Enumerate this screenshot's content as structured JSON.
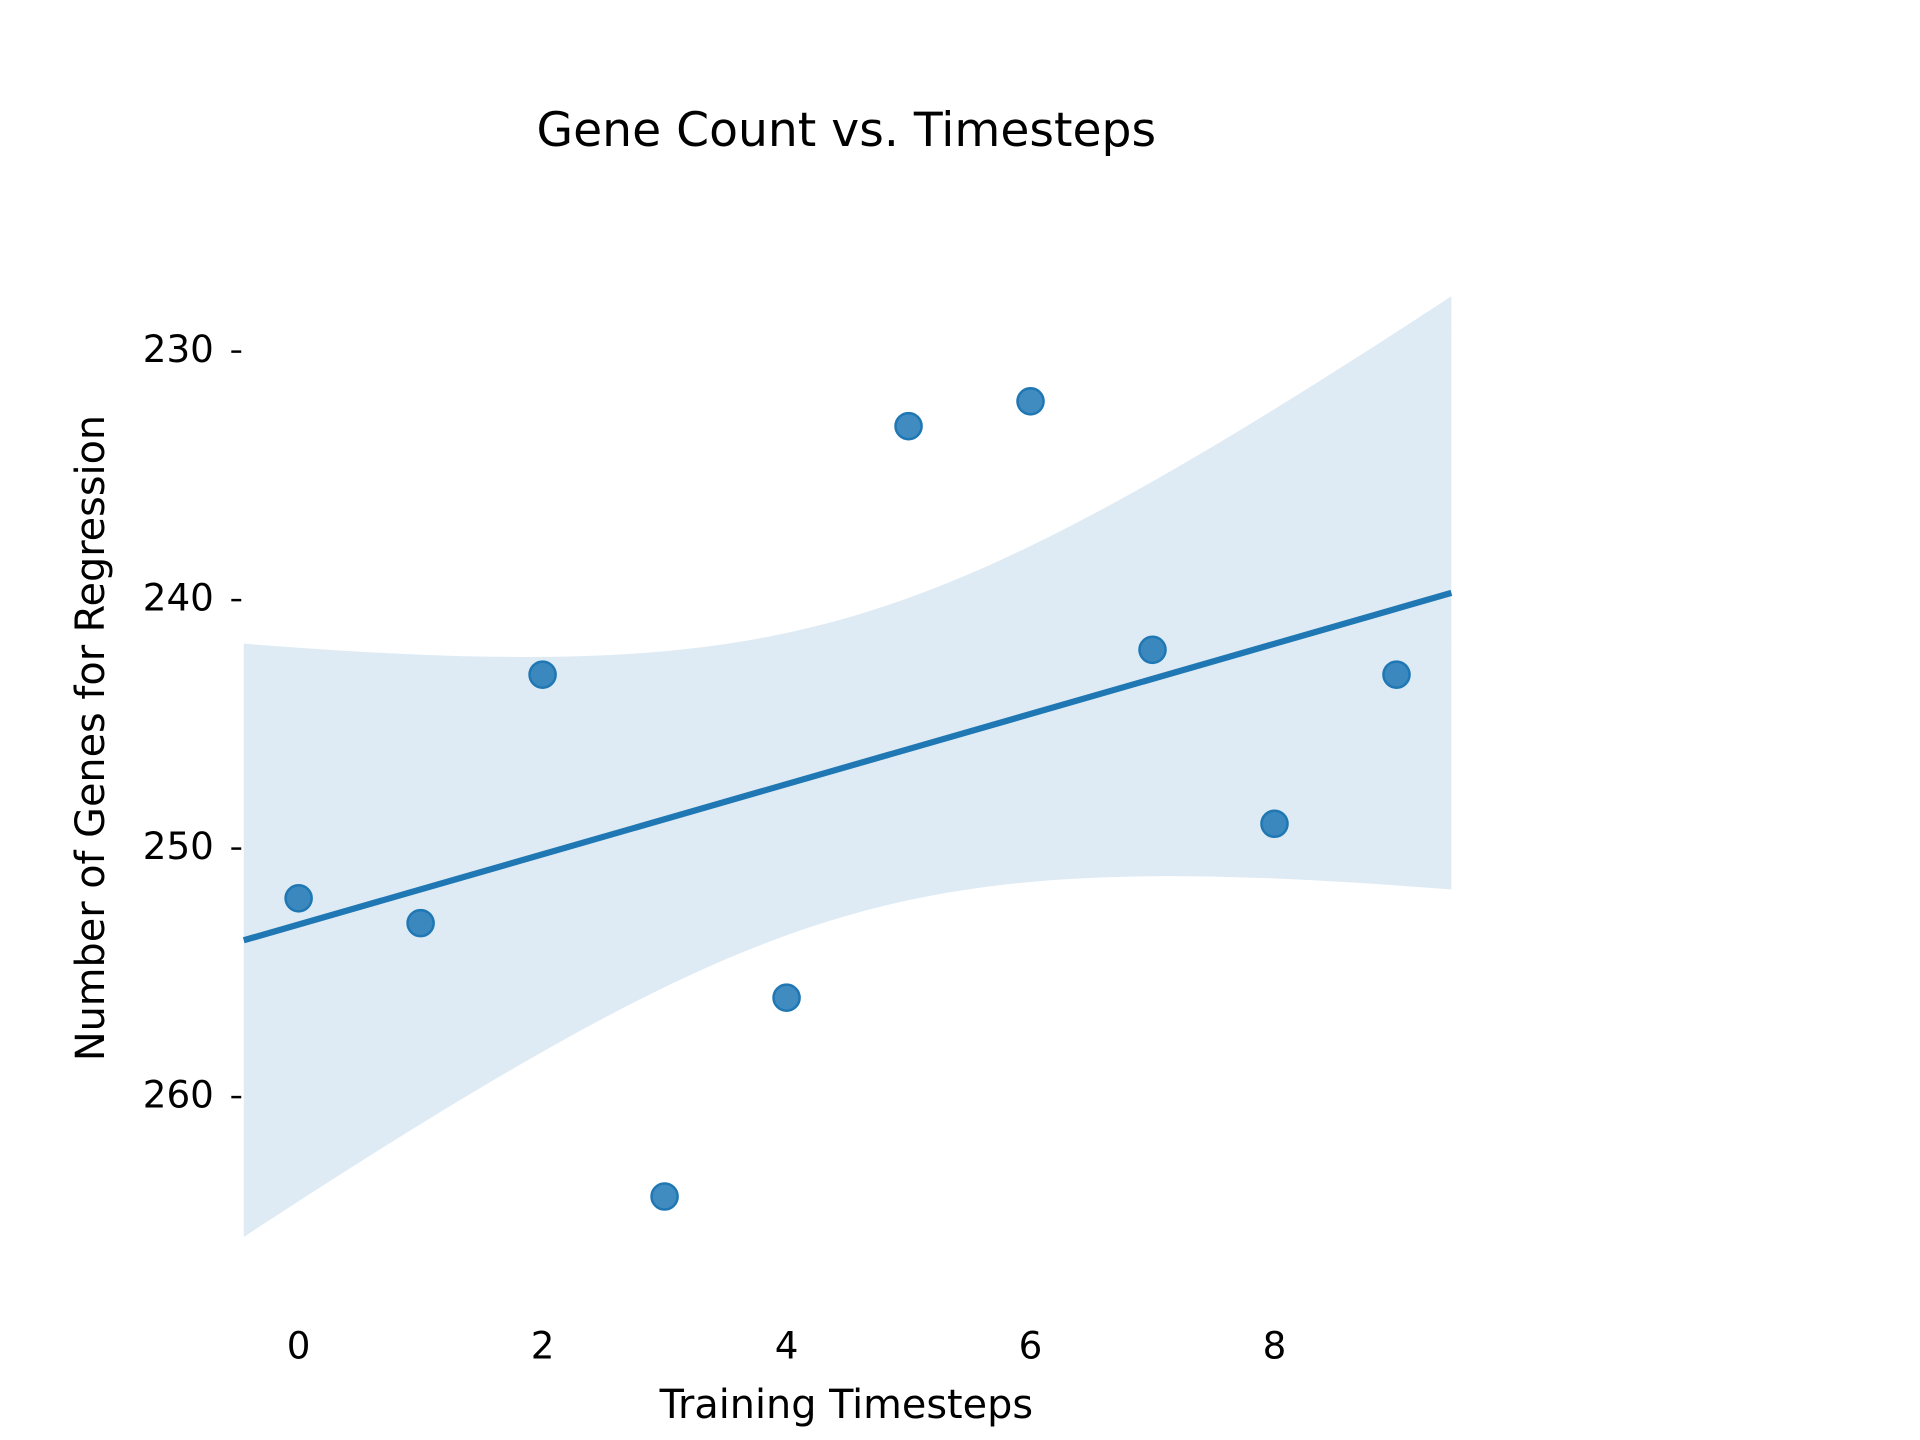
{
  "chart_data": {
    "type": "scatter",
    "title": "Gene Count vs. Timesteps",
    "x_label": "Training Timesteps",
    "y_label": "Number of Genes for Regression",
    "x": [
      0,
      1,
      2,
      3,
      4,
      5,
      6,
      7,
      8,
      9
    ],
    "values": [
      252,
      253,
      243,
      264,
      256,
      233,
      232,
      242,
      249,
      243
    ],
    "color": "#1f77b4",
    "fit_line": true,
    "xlim": [
      -0.45,
      9.45
    ],
    "ylim": [
      266.1,
      225
    ],
    "xticks": [
      0,
      2,
      4,
      6,
      8
    ],
    "yticks": [
      230,
      240,
      250,
      260
    ]
  }
}
